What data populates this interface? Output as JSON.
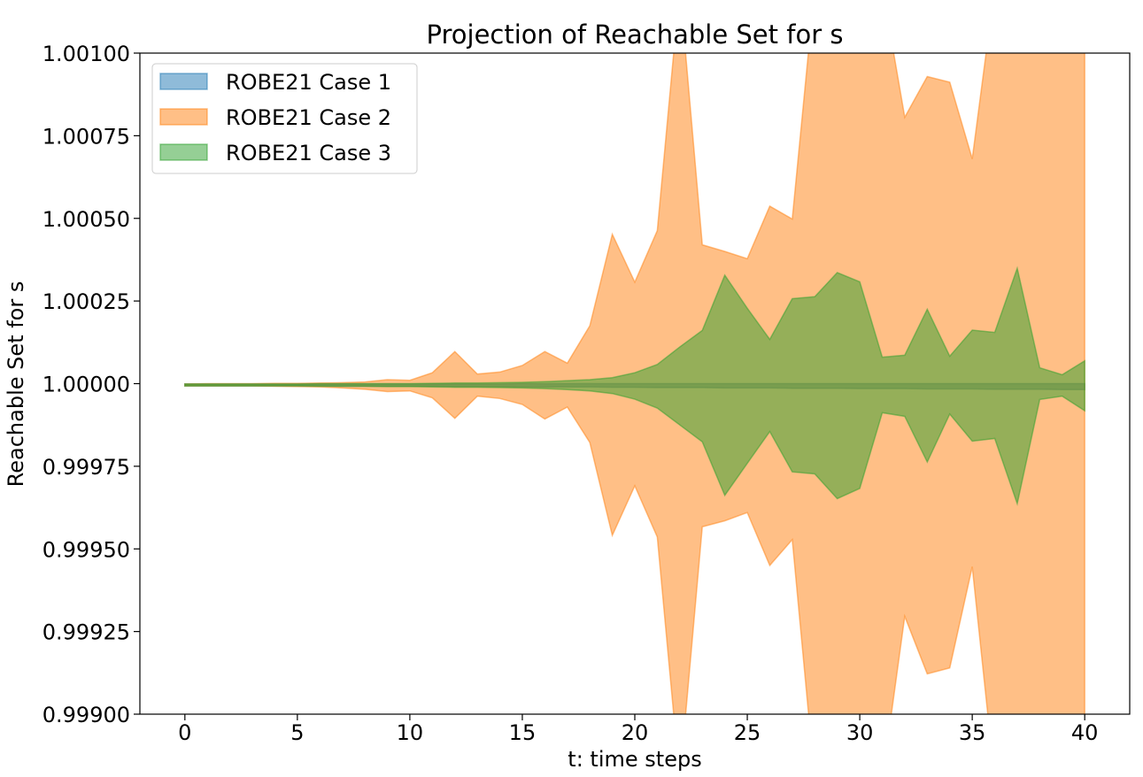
{
  "chart_data": {
    "type": "area",
    "title": "Projection of Reachable Set for s",
    "xlabel": "t: time steps",
    "ylabel": "Reachable Set for s",
    "xlim": [
      -2,
      42
    ],
    "ylim": [
      0.999,
      1.001
    ],
    "x_ticks": [
      0,
      5,
      10,
      15,
      20,
      25,
      30,
      35,
      40
    ],
    "x_tick_labels": [
      "0",
      "5",
      "10",
      "15",
      "20",
      "25",
      "30",
      "35",
      "40"
    ],
    "y_ticks": [
      0.999,
      0.99925,
      0.9995,
      0.99975,
      1.0,
      1.00025,
      1.0005,
      1.00075,
      1.001
    ],
    "y_tick_labels": [
      "0.99900",
      "0.99925",
      "0.99950",
      "0.99975",
      "1.00000",
      "1.00025",
      "1.00050",
      "1.00075",
      "1.00100"
    ],
    "grid": false,
    "legend_position": "top-left",
    "x": [
      0,
      1,
      2,
      3,
      4,
      5,
      6,
      7,
      8,
      9,
      10,
      11,
      12,
      13,
      14,
      15,
      16,
      17,
      18,
      19,
      20,
      21,
      22,
      23,
      24,
      25,
      26,
      27,
      28,
      29,
      30,
      31,
      32,
      33,
      34,
      35,
      36,
      37,
      38,
      39,
      40
    ],
    "series": [
      {
        "name": "ROBE21 Case 1",
        "color": "#1f77b4",
        "upper": [
          0.999999,
          0.999999,
          0.999999,
          0.999999,
          0.999999,
          0.999999,
          0.999999,
          0.999999,
          0.999999,
          0.999999,
          0.999999,
          0.999999,
          0.999999,
          0.999999,
          0.999999,
          1.0,
          1.0,
          1.0,
          1.0,
          1.0,
          1.0,
          1.0,
          1.0,
          1.0,
          1.0,
          1.0,
          1.0,
          1.0,
          1.0,
          1.0,
          1.0,
          1.0,
          1.0,
          1.0,
          1.0,
          1.0,
          1.0,
          1.0,
          1.0,
          1.0,
          1.0
        ],
        "lower": [
          0.999993,
          0.999993,
          0.999993,
          0.999993,
          0.999993,
          0.999993,
          0.999993,
          0.999992,
          0.999992,
          0.999992,
          0.999992,
          0.999992,
          0.999991,
          0.999991,
          0.999991,
          0.99999,
          0.99999,
          0.99999,
          0.99999,
          0.999989,
          0.999989,
          0.999988,
          0.999988,
          0.999988,
          0.999987,
          0.999987,
          0.999987,
          0.999986,
          0.999986,
          0.999986,
          0.999985,
          0.999985,
          0.999985,
          0.999984,
          0.999984,
          0.999984,
          0.999983,
          0.999983,
          0.999983,
          0.999982,
          0.999982
        ]
      },
      {
        "name": "ROBE21 Case 2",
        "color": "#ff7f0e",
        "upper": [
          0.999999,
          1.0,
          1.0,
          1.0,
          1.000001,
          1.000001,
          1.000002,
          1.000003,
          1.000005,
          1.000012,
          1.00001,
          1.000033,
          1.000097,
          1.000029,
          1.000035,
          1.000055,
          1.000097,
          1.000062,
          1.000175,
          1.000452,
          1.000307,
          1.000463,
          1.0012,
          1.00042,
          1.0004,
          1.000378,
          1.000537,
          1.000498,
          1.0012,
          1.0013,
          1.0013,
          1.0012,
          1.000806,
          1.000929,
          1.000912,
          1.00068,
          1.0012,
          1.0013,
          1.0013,
          1.0013,
          1.0013
        ],
        "lower": [
          0.999993,
          0.999993,
          0.999993,
          0.999993,
          0.999992,
          0.999991,
          0.99999,
          0.999987,
          0.999983,
          0.999976,
          0.999978,
          0.999957,
          0.999895,
          0.999962,
          0.999955,
          0.999937,
          0.999893,
          0.999929,
          0.999822,
          0.999541,
          0.999691,
          0.999536,
          0.9988,
          0.999567,
          0.999585,
          0.99961,
          0.99945,
          0.999528,
          0.9988,
          0.9987,
          0.9987,
          0.9988,
          0.999296,
          0.999122,
          0.99914,
          0.999446,
          0.9988,
          0.9987,
          0.9987,
          0.9987,
          0.9987
        ]
      },
      {
        "name": "ROBE21 Case 3",
        "color": "#2ca02c",
        "upper": [
          0.999999,
          0.999999,
          0.999999,
          0.999999,
          0.999999,
          0.999999,
          1.0,
          1.0,
          1.0,
          1.0,
          1.0,
          1.000001,
          1.000002,
          1.000002,
          1.000003,
          1.000004,
          1.000006,
          1.000009,
          1.000012,
          1.000018,
          1.000033,
          1.000058,
          1.000111,
          1.000161,
          1.000328,
          1.000228,
          1.000134,
          1.000257,
          1.000263,
          1.000336,
          1.000308,
          1.00008,
          1.000086,
          1.000225,
          1.000083,
          1.000162,
          1.000155,
          1.000349,
          1.000048,
          1.000027,
          1.000069
        ],
        "lower": [
          0.999993,
          0.999993,
          0.999993,
          0.999993,
          0.999993,
          0.999993,
          0.999992,
          0.999992,
          0.999992,
          0.999991,
          0.999991,
          0.99999,
          0.999989,
          0.999989,
          0.999988,
          0.999987,
          0.999985,
          0.999982,
          0.999978,
          0.99997,
          0.999953,
          0.999926,
          0.999875,
          0.999824,
          0.999662,
          0.999759,
          0.999855,
          0.999733,
          0.999727,
          0.999652,
          0.999683,
          0.999912,
          0.999901,
          0.999763,
          0.999908,
          0.999826,
          0.999834,
          0.999637,
          0.999952,
          0.999962,
          0.999918
        ]
      }
    ]
  }
}
